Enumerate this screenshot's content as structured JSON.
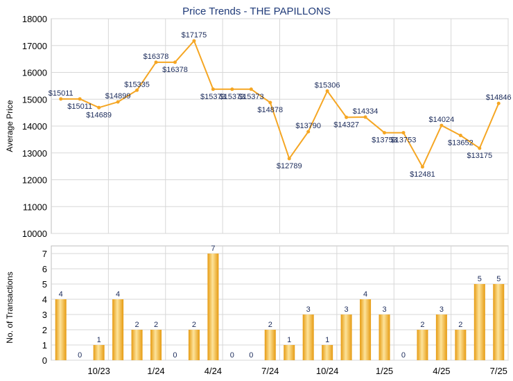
{
  "title": "Price Trends - THE PAPILLONS",
  "colors": {
    "line": "#f5a623",
    "bar_light": "#fde39a",
    "bar_dark": "#e69b12",
    "grid": "#d7d7d7",
    "text": "#1f3a78"
  },
  "chart_data": [
    {
      "type": "line",
      "ylabel": "Average Price",
      "ylim": [
        10000,
        18000
      ],
      "yticks": [
        10000,
        11000,
        12000,
        13000,
        14000,
        15000,
        16000,
        17000,
        18000
      ],
      "label_prefix": "$",
      "points": [
        {
          "month": "Aug 23",
          "value": 15011
        },
        {
          "month": "Sep 23",
          "value": 15011
        },
        {
          "month": "Oct 23",
          "value": 14689
        },
        {
          "month": "Nov 23",
          "value": 14899
        },
        {
          "month": "Dec 23",
          "value": 15335
        },
        {
          "month": "Jan 24",
          "value": 16378
        },
        {
          "month": "Feb 24",
          "value": 16378
        },
        {
          "month": "Mar 24",
          "value": 17175
        },
        {
          "month": "Apr 24",
          "value": 15373
        },
        {
          "month": "May 24",
          "value": 15373
        },
        {
          "month": "Jun 24",
          "value": 15373
        },
        {
          "month": "Jul 24",
          "value": 14878
        },
        {
          "month": "Aug 24",
          "value": 12789
        },
        {
          "month": "Sep 24",
          "value": 13790
        },
        {
          "month": "Oct 24",
          "value": 15306
        },
        {
          "month": "Nov 24",
          "value": 14327
        },
        {
          "month": "Dec 24",
          "value": 14334
        },
        {
          "month": "Jan 25",
          "value": 13753
        },
        {
          "month": "Feb 25",
          "value": 13753
        },
        {
          "month": "Mar 25",
          "value": 12481
        },
        {
          "month": "Apr 25",
          "value": 14024
        },
        {
          "month": "May 25",
          "value": 13652
        },
        {
          "month": "Jun 25",
          "value": 13175
        },
        {
          "month": "Jul 25",
          "value": 14846
        }
      ]
    },
    {
      "type": "bar",
      "ylabel": "No. of Transactions",
      "ylim": [
        0,
        7
      ],
      "yticks": [
        0,
        1,
        2,
        3,
        4,
        5,
        6,
        7
      ],
      "categories": [
        "Aug 23",
        "Sep 23",
        "Oct 23",
        "Nov 23",
        "Dec 23",
        "Jan 24",
        "Feb 24",
        "Mar 24",
        "Apr 24",
        "May 24",
        "Jun 24",
        "Jul 24",
        "Aug 24",
        "Sep 24",
        "Oct 24",
        "Nov 24",
        "Dec 24",
        "Jan 25",
        "Feb 25",
        "Mar 25",
        "Apr 25",
        "May 25",
        "Jun 25",
        "Jul 25"
      ],
      "values": [
        4,
        0,
        1,
        4,
        2,
        2,
        0,
        2,
        7,
        0,
        0,
        2,
        1,
        3,
        1,
        3,
        4,
        3,
        0,
        2,
        3,
        2,
        5,
        5
      ],
      "xticks": [
        {
          "index": 2,
          "label": "10/23"
        },
        {
          "index": 5,
          "label": "1/24"
        },
        {
          "index": 8,
          "label": "4/24"
        },
        {
          "index": 11,
          "label": "7/24"
        },
        {
          "index": 14,
          "label": "10/24"
        },
        {
          "index": 17,
          "label": "1/25"
        },
        {
          "index": 20,
          "label": "4/25"
        },
        {
          "index": 23,
          "label": "7/25"
        }
      ]
    }
  ]
}
